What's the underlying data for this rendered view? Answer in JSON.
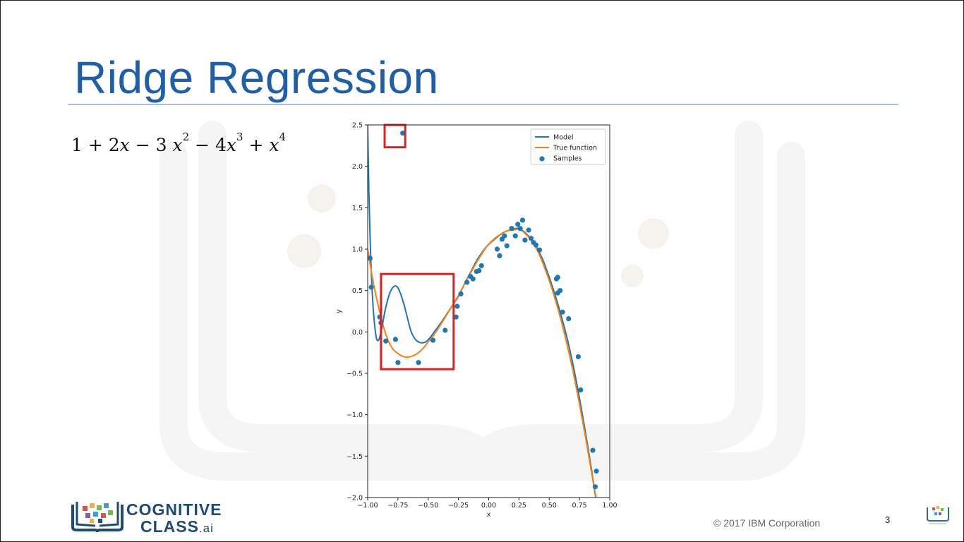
{
  "slide": {
    "title": "Ridge Regression",
    "equation": {
      "c0": "1",
      "t1": "2",
      "t2": "3",
      "t3": "4"
    },
    "copyright": "© 2017 IBM Corporation",
    "page_number": "3",
    "logo": {
      "line1": "COGNITIVE",
      "line2": "CLASS",
      "suffix": ".ai"
    }
  },
  "colors": {
    "title": "#1f5fa8",
    "model": "#1f77b4",
    "true_function": "#ff7f0e",
    "samples": "#1f77b4",
    "highlight_box": "#e02020"
  },
  "chart_data": {
    "type": "line",
    "xlabel": "x",
    "ylabel": "y",
    "xlim": [
      -1.0,
      1.0
    ],
    "ylim": [
      -2.0,
      2.5
    ],
    "xticks": [
      "−1.00",
      "−0.75",
      "−0.50",
      "−0.25",
      "0.00",
      "0.25",
      "0.50",
      "0.75",
      "1.00"
    ],
    "yticks": [
      "2.5",
      "2.0",
      "1.5",
      "1.0",
      "0.5",
      "0.0",
      "−0.5",
      "−1.0",
      "−1.5",
      "−2.0"
    ],
    "grid": false,
    "legend": {
      "placement": "top-right",
      "entries": [
        "Model",
        "True function",
        "Samples"
      ]
    },
    "series": [
      {
        "name": "Model",
        "x": [
          -1.0,
          -0.99,
          -0.98,
          -0.97,
          -0.96,
          -0.95,
          -0.93,
          -0.91,
          -0.89,
          -0.87,
          -0.85,
          -0.82,
          -0.79,
          -0.76,
          -0.73,
          -0.7,
          -0.67,
          -0.64,
          -0.6,
          -0.56,
          -0.52,
          -0.48,
          -0.45,
          -0.42,
          -0.38,
          -0.34,
          -0.3,
          -0.25,
          -0.2,
          -0.15,
          -0.1,
          -0.05,
          0.0,
          0.05,
          0.1,
          0.15,
          0.2,
          0.25,
          0.3,
          0.35,
          0.4,
          0.45,
          0.5,
          0.55,
          0.6,
          0.65,
          0.7,
          0.75,
          0.8,
          0.85,
          0.88,
          0.9
        ],
        "y": [
          2.5,
          1.7,
          1.15,
          0.72,
          0.42,
          0.2,
          -0.06,
          -0.1,
          0.0,
          0.15,
          0.3,
          0.46,
          0.54,
          0.55,
          0.47,
          0.33,
          0.16,
          0.0,
          -0.1,
          -0.13,
          -0.12,
          -0.06,
          0.0,
          0.06,
          0.14,
          0.23,
          0.32,
          0.43,
          0.58,
          0.72,
          0.86,
          0.97,
          1.06,
          1.12,
          1.18,
          1.22,
          1.24,
          1.25,
          1.2,
          1.12,
          1.01,
          0.86,
          0.66,
          0.44,
          0.19,
          -0.09,
          -0.42,
          -0.8,
          -1.22,
          -1.67,
          -1.96,
          -2.1
        ]
      },
      {
        "name": "True function",
        "x": [
          -1.0,
          -0.95,
          -0.9,
          -0.85,
          -0.8,
          -0.75,
          -0.7,
          -0.65,
          -0.6,
          -0.55,
          -0.5,
          -0.45,
          -0.4,
          -0.35,
          -0.3,
          -0.25,
          -0.2,
          -0.15,
          -0.1,
          -0.05,
          0.0,
          0.05,
          0.1,
          0.15,
          0.2,
          0.25,
          0.3,
          0.35,
          0.4,
          0.45,
          0.5,
          0.55,
          0.6,
          0.65,
          0.7,
          0.75,
          0.8,
          0.85,
          0.9
        ],
        "y": [
          1.0,
          0.57,
          0.24,
          -0.03,
          -0.19,
          -0.26,
          -0.3,
          -0.3,
          -0.27,
          -0.21,
          -0.12,
          -0.03,
          0.08,
          0.2,
          0.32,
          0.44,
          0.58,
          0.71,
          0.84,
          0.96,
          1.06,
          1.13,
          1.18,
          1.22,
          1.23,
          1.24,
          1.19,
          1.11,
          0.99,
          0.82,
          0.62,
          0.39,
          0.13,
          -0.17,
          -0.5,
          -0.87,
          -1.27,
          -1.7,
          -2.1
        ]
      },
      {
        "name": "Samples",
        "type": "scatter",
        "x": [
          -0.71,
          -0.98,
          -0.97,
          -0.9,
          -0.89,
          -0.85,
          -0.77,
          -0.75,
          -0.58,
          -0.46,
          -0.36,
          -0.27,
          -0.26,
          -0.23,
          -0.18,
          -0.15,
          -0.13,
          -0.1,
          -0.08,
          -0.06,
          0.07,
          0.09,
          0.11,
          0.13,
          0.15,
          0.19,
          0.22,
          0.24,
          0.26,
          0.28,
          0.3,
          0.33,
          0.35,
          0.37,
          0.39,
          0.42,
          0.56,
          0.57,
          0.57,
          0.59,
          0.61,
          0.66,
          0.74,
          0.76,
          0.86,
          0.88,
          0.89
        ],
        "y": [
          2.4,
          0.89,
          0.54,
          0.18,
          0.11,
          -0.11,
          -0.09,
          -0.37,
          -0.37,
          -0.1,
          0.02,
          0.18,
          0.31,
          0.46,
          0.6,
          0.67,
          0.64,
          0.73,
          0.74,
          0.8,
          1.0,
          0.92,
          1.12,
          1.16,
          1.04,
          1.25,
          1.16,
          1.3,
          1.25,
          1.35,
          1.11,
          1.23,
          1.13,
          1.08,
          1.05,
          0.99,
          0.64,
          0.47,
          0.66,
          0.5,
          0.24,
          0.16,
          -0.3,
          -0.7,
          -1.43,
          -1.87,
          -1.68
        ]
      }
    ],
    "annotations": [
      {
        "type": "box",
        "x": [
          -0.86,
          -0.69
        ],
        "y": [
          2.23,
          2.5
        ]
      },
      {
        "type": "box",
        "x": [
          -0.89,
          -0.29
        ],
        "y": [
          -0.45,
          0.7
        ]
      }
    ]
  }
}
